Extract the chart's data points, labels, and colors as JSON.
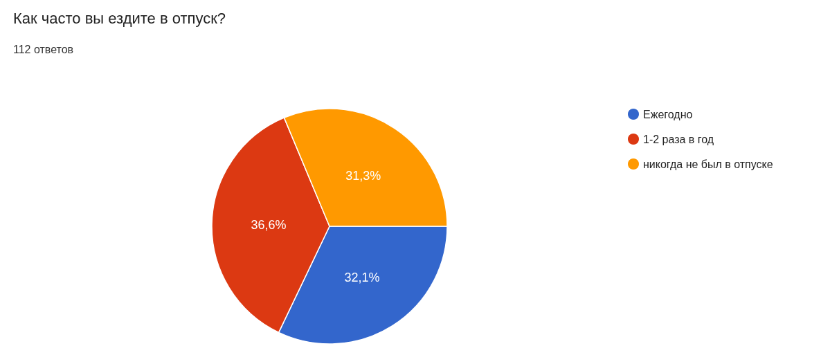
{
  "chart_data": {
    "type": "pie",
    "title": "Как часто вы ездите в отпуск?",
    "subtitle": "112 ответов",
    "categories": [
      "Ежегодно",
      "1-2 раза в год",
      "никогда не был в отпуске"
    ],
    "values": [
      32.1,
      36.6,
      31.3
    ],
    "colors": [
      "#3366cc",
      "#dc3912",
      "#ff9900"
    ],
    "value_labels": [
      "32,1%",
      "36,6%",
      "31,3%"
    ],
    "legend": "right"
  }
}
